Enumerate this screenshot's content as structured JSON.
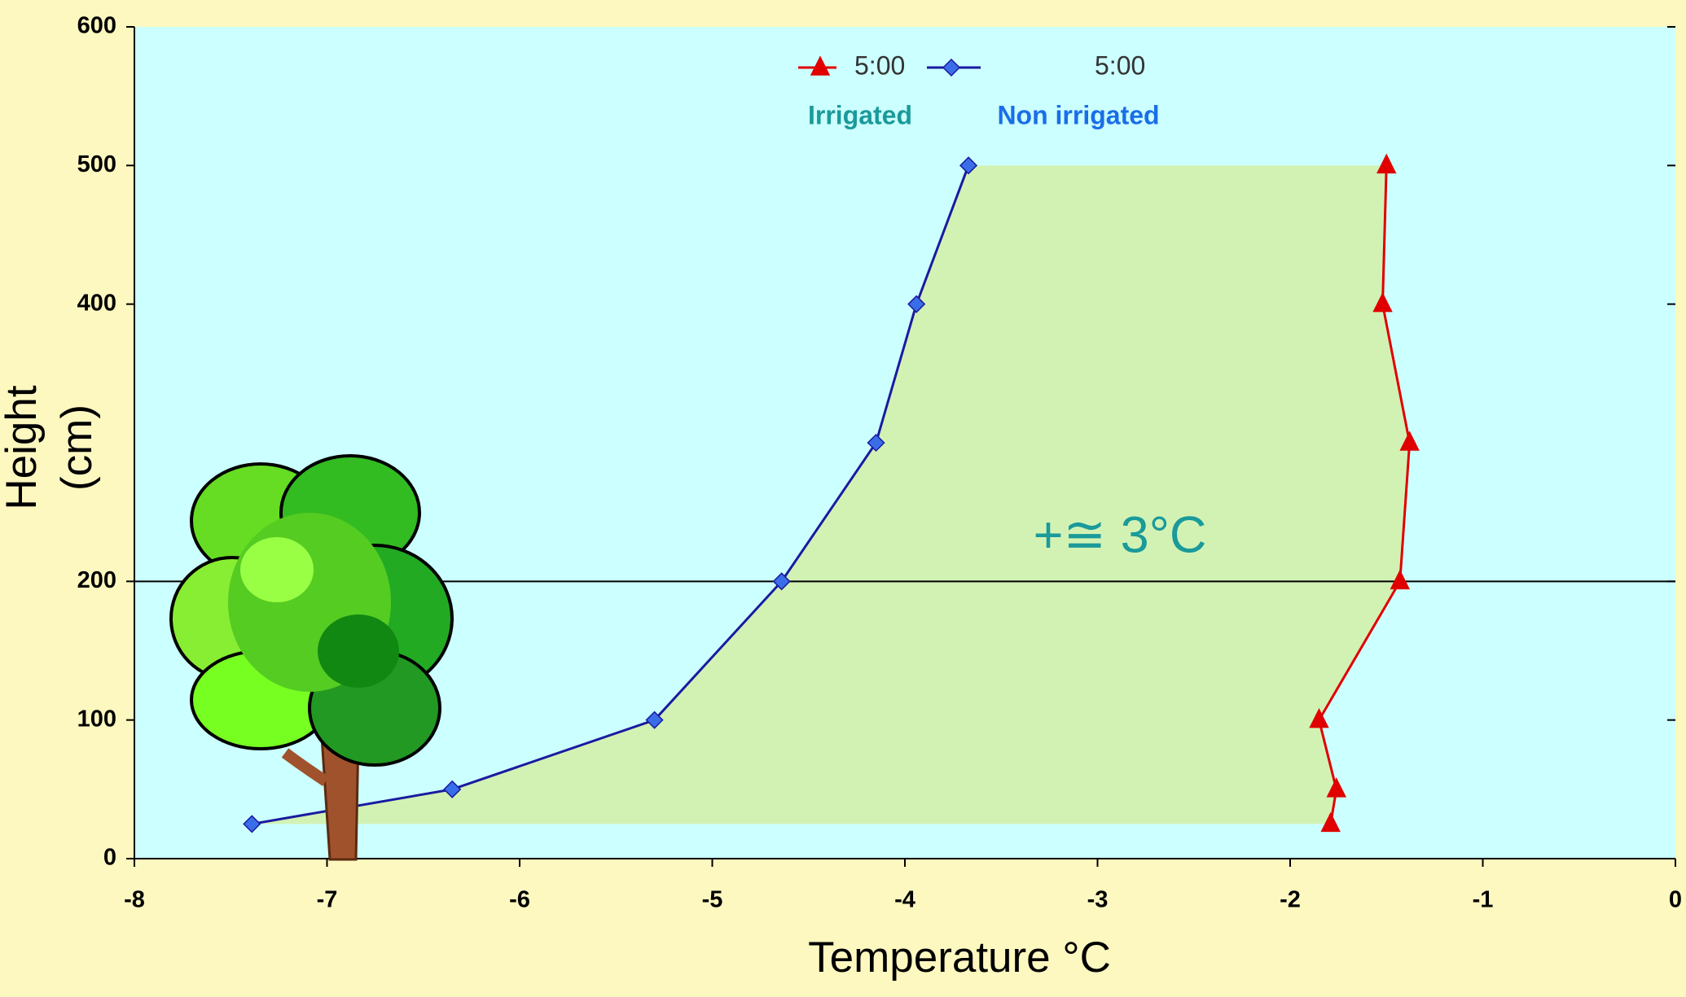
{
  "chart_data": {
    "type": "line",
    "xlabel": "Temperature °C",
    "ylabel": [
      "Height",
      "(cm)"
    ],
    "series": [
      {
        "name": "5:00",
        "color": "#e00000",
        "marker": "triangle",
        "x": [
          -1.79,
          -1.76,
          -1.85,
          -1.43,
          -1.38,
          -1.52,
          -1.5
        ],
        "values": [
          25,
          50,
          100,
          200,
          300,
          400,
          500
        ]
      },
      {
        "name": "5:00",
        "color": "#1a1aa0",
        "marker_color": "#3a6ee8",
        "marker": "diamond",
        "x": [
          -7.39,
          -6.35,
          -5.3,
          -4.64,
          -4.15,
          -3.94,
          -3.67
        ],
        "values": [
          25,
          50,
          100,
          200,
          300,
          400,
          500
        ]
      }
    ],
    "legend_notes": [
      "Irrigated",
      "Non irrigated"
    ],
    "annotation": "+≅ 3°C",
    "fill_between": true,
    "fill_color": "#d2f2b4",
    "reference_line": 200,
    "xlim": [
      -8,
      0
    ],
    "xticks": [
      -8,
      -7,
      -6,
      -5,
      -4,
      -3,
      -2,
      -1,
      0
    ],
    "ylim": [
      0,
      600
    ],
    "yticks": [
      0,
      100,
      200,
      400,
      500,
      600
    ]
  }
}
